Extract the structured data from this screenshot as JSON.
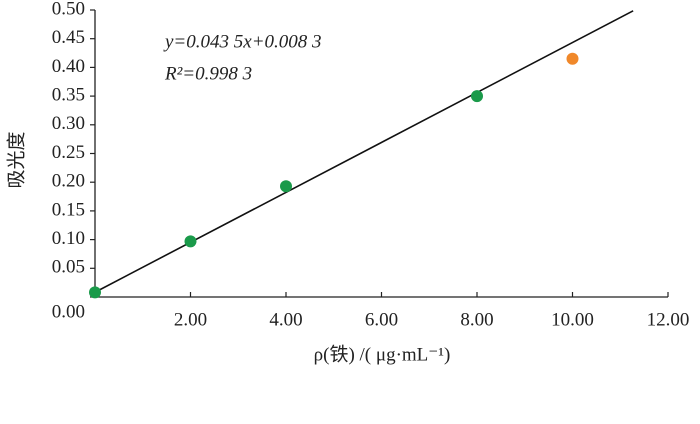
{
  "chart_data": {
    "type": "scatter",
    "y_label": "吸光度",
    "x_label": "ρ(铁) /( μg·mL⁻¹)",
    "annotations": [
      "y=0.043 5x+0.008 3",
      "R²=0.998 3"
    ],
    "series": [
      {
        "color": "#1a9a4a",
        "x": [
          0,
          2,
          4,
          8
        ],
        "values": [
          0.008,
          0.097,
          0.193,
          0.35
        ]
      },
      {
        "color": "#f0882a",
        "x": [
          10
        ],
        "values": [
          0.415
        ]
      }
    ],
    "fit": {
      "slope": 0.0435,
      "intercept": 0.0083,
      "x_range": [
        0,
        11.27
      ]
    },
    "xlim": [
      0,
      12
    ],
    "ylim": [
      0,
      0.5
    ],
    "xticks": [
      {
        "value": 2,
        "label": "2.00"
      },
      {
        "value": 4,
        "label": "4.00"
      },
      {
        "value": 6,
        "label": "6.00"
      },
      {
        "value": 8,
        "label": "8.00"
      },
      {
        "value": 10,
        "label": "10.00"
      },
      {
        "value": 12,
        "label": "12.00"
      }
    ],
    "yticks": [
      {
        "value": 0,
        "label": "0.00"
      },
      {
        "value": 0.05,
        "label": "0.05"
      },
      {
        "value": 0.1,
        "label": "0.10"
      },
      {
        "value": 0.15,
        "label": "0.15"
      },
      {
        "value": 0.2,
        "label": "0.20"
      },
      {
        "value": 0.25,
        "label": "0.25"
      },
      {
        "value": 0.3,
        "label": "0.30"
      },
      {
        "value": 0.35,
        "label": "0.35"
      },
      {
        "value": 0.4,
        "label": "0.40"
      },
      {
        "value": 0.45,
        "label": "0.45"
      },
      {
        "value": 0.5,
        "label": "0.50"
      }
    ]
  }
}
